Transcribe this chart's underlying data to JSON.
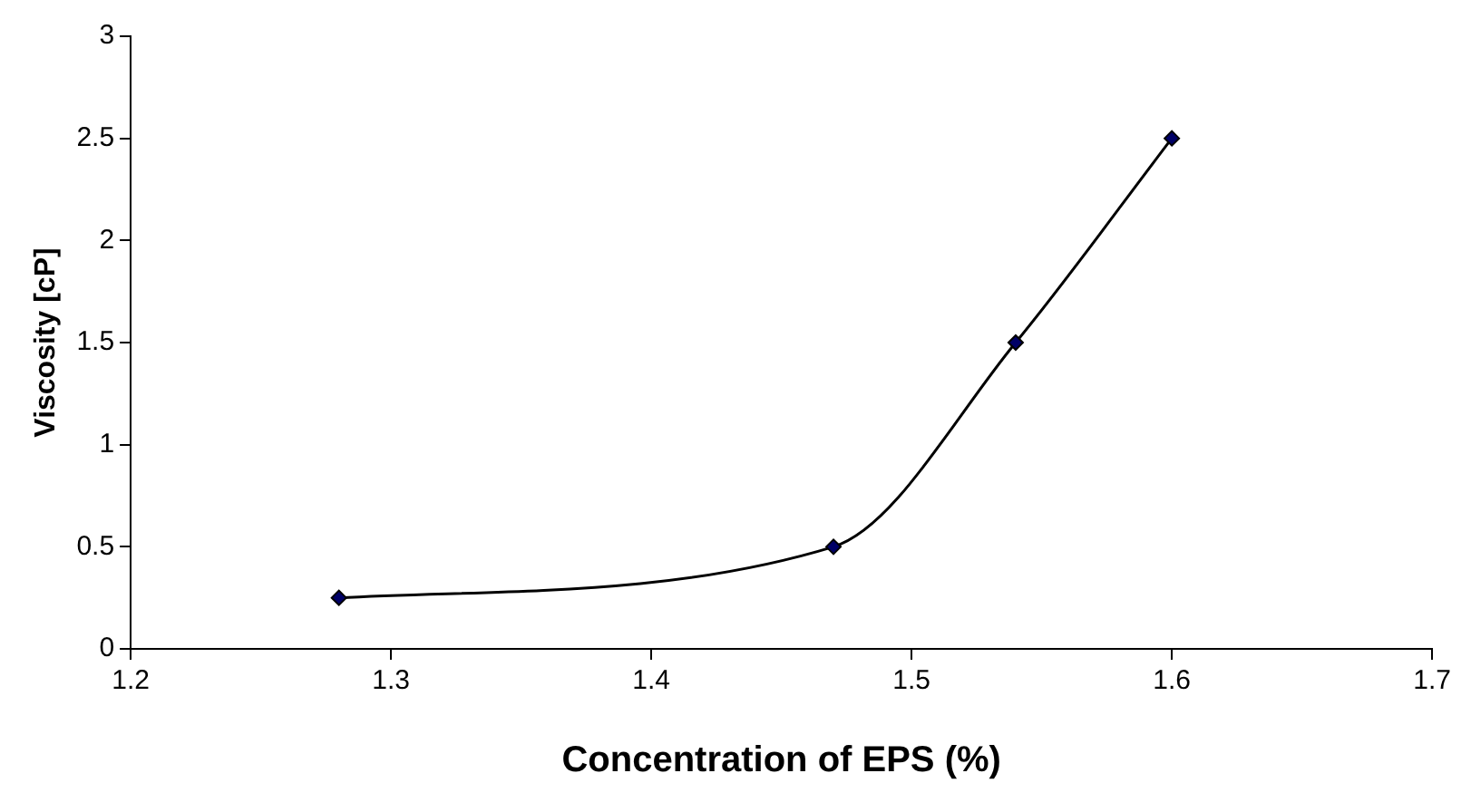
{
  "chart_data": {
    "type": "line",
    "xlabel": "Concentration of EPS (%)",
    "ylabel": "Viscosity [cP]",
    "x": [
      1.28,
      1.47,
      1.54,
      1.6
    ],
    "series": [
      {
        "color": "#000000",
        "values": [
          0.25,
          0.5,
          1.5,
          2.5
        ]
      }
    ],
    "xlim": [
      1.2,
      1.7
    ],
    "xticks": [
      1.2,
      1.3,
      1.4,
      1.5,
      1.6,
      1.7
    ],
    "ylim": [
      0,
      3
    ],
    "yticks": [
      0,
      0.5,
      1,
      1.5,
      2,
      2.5,
      3
    ],
    "grid": false,
    "legend": false,
    "marker": "diamond",
    "line_style": "solid"
  }
}
